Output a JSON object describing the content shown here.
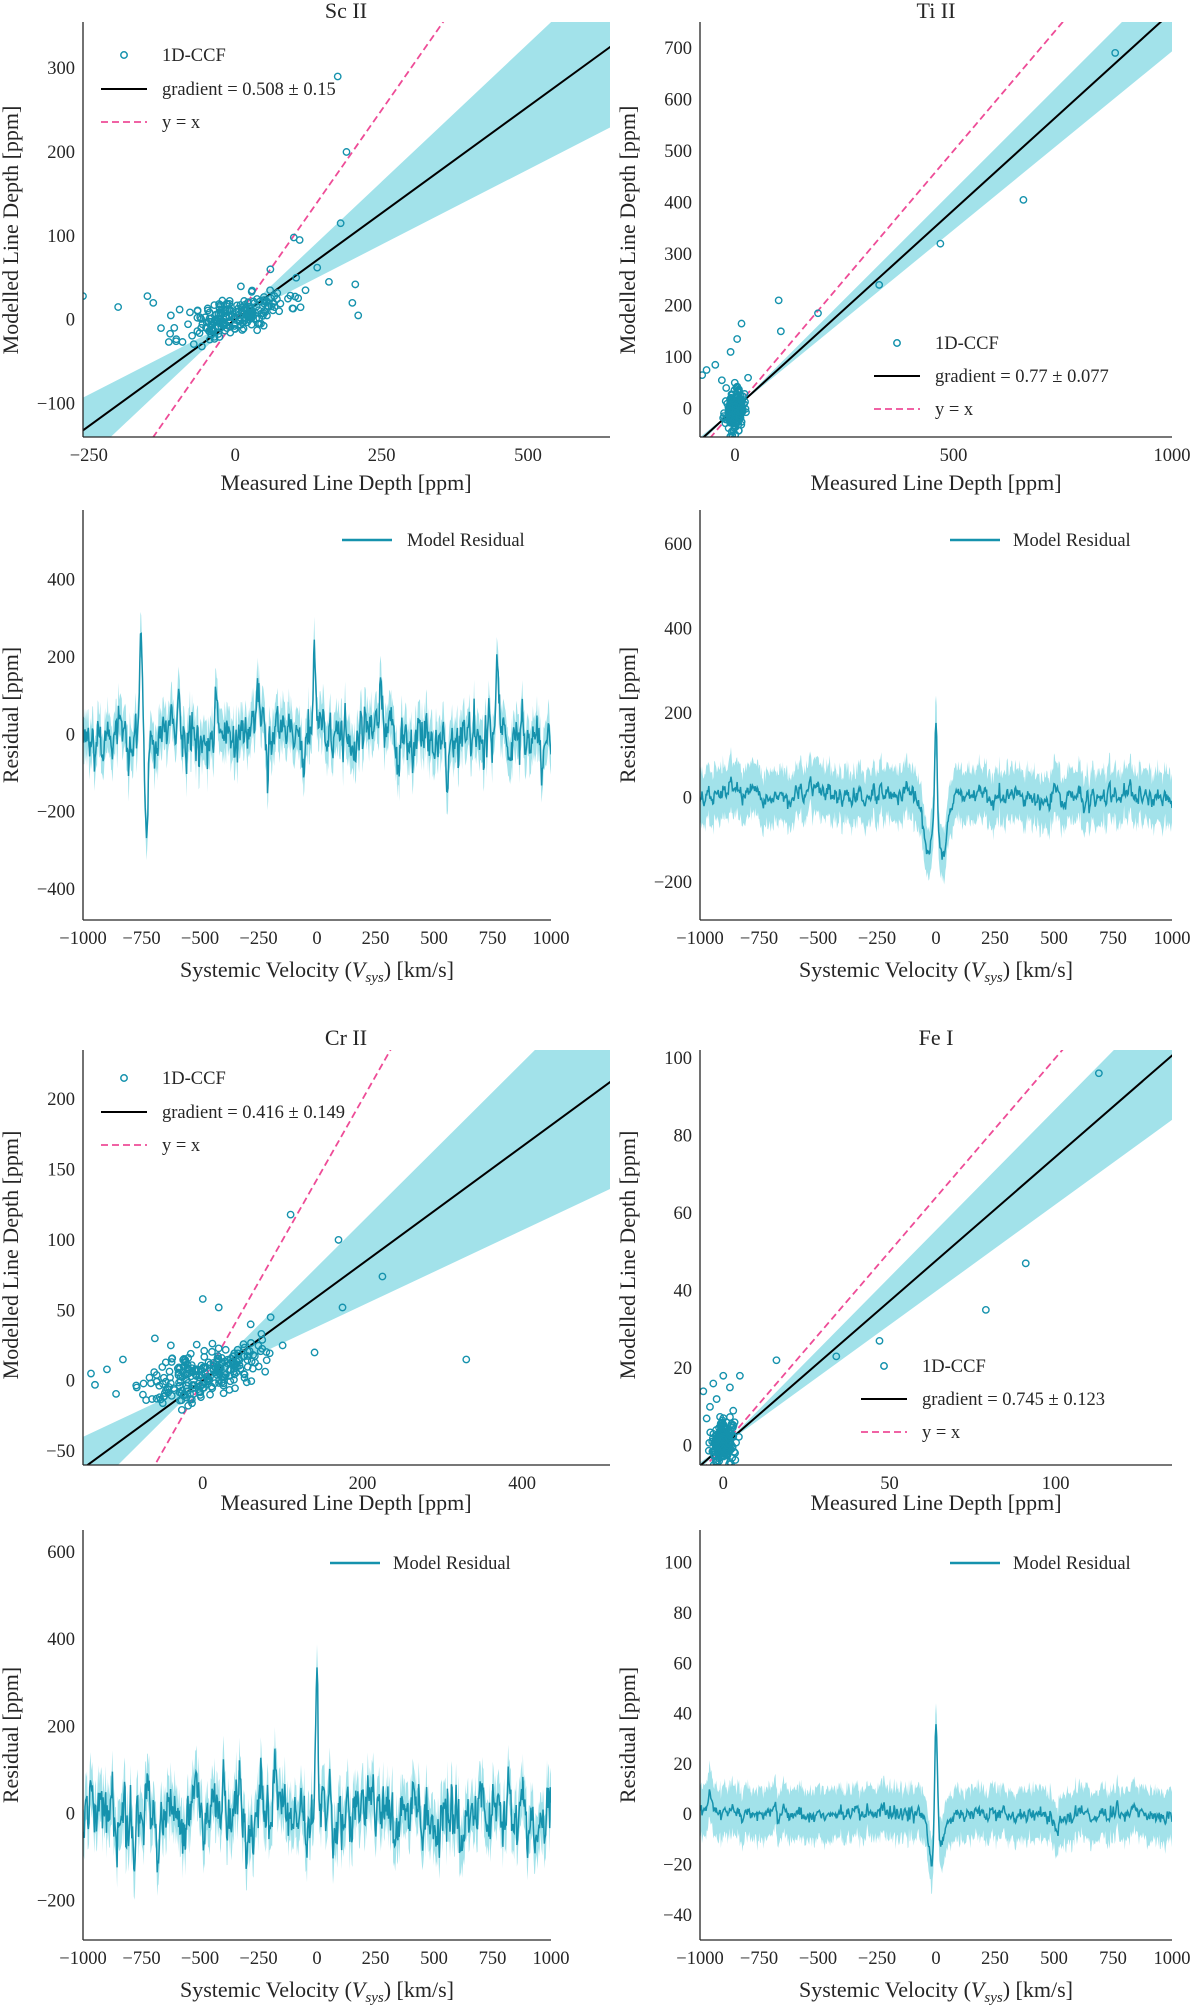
{
  "figure": {
    "colors": {
      "data": "#1592ad",
      "band": "#a2e2ea",
      "fit": "#000000",
      "identity": "#ee4c97",
      "residual": "#1592ad",
      "residual_band": "#a2e2ea"
    }
  },
  "chart_data": [
    {
      "id": "sc-corr",
      "type": "scatter",
      "title": "Sc II",
      "xlabel": "Measured Line Depth [ppm]",
      "ylabel": "Modelled Line Depth [ppm]",
      "xlim": [
        -260,
        640
      ],
      "ylim": [
        -140,
        355
      ],
      "xticks": [
        -250,
        0,
        250,
        500
      ],
      "yticks": [
        -100,
        0,
        100,
        200,
        300
      ],
      "legend_position": "top-left",
      "legend": {
        "scatter": "1D-CCF",
        "fit": "gradient = 0.508 ± 0.15",
        "identity": "y = x"
      },
      "gradient": 0.508,
      "gradient_err": 0.15,
      "outliers": [
        [
          -260,
          28
        ],
        [
          -200,
          15
        ],
        [
          -150,
          28
        ],
        [
          -140,
          20
        ],
        [
          -110,
          5
        ],
        [
          -95,
          12
        ],
        [
          100,
          98
        ],
        [
          110,
          95
        ],
        [
          140,
          62
        ],
        [
          160,
          45
        ],
        [
          175,
          290
        ],
        [
          190,
          200
        ],
        [
          180,
          115
        ],
        [
          200,
          20
        ],
        [
          205,
          42
        ],
        [
          210,
          5
        ],
        [
          120,
          35
        ],
        [
          90,
          25
        ],
        [
          75,
          10
        ],
        [
          60,
          60
        ]
      ],
      "cluster": {
        "cx": 0,
        "cy": 5,
        "sx": 45,
        "sy": 12,
        "n": 200
      }
    },
    {
      "id": "ti-corr",
      "type": "scatter",
      "title": "Ti II",
      "xlabel": "Measured Line Depth [ppm]",
      "ylabel": "Modelled Line Depth [ppm]",
      "xlim": [
        -80,
        1000
      ],
      "ylim": [
        -55,
        750
      ],
      "xticks": [
        0,
        500,
        1000
      ],
      "yticks": [
        0,
        100,
        200,
        300,
        400,
        500,
        600,
        700
      ],
      "legend_position": "center-right",
      "legend": {
        "scatter": "1D-CCF",
        "fit": "gradient = 0.77 ± 0.077",
        "identity": "y = x"
      },
      "gradient": 0.77,
      "gradient_err": 0.077,
      "outliers": [
        [
          -75,
          65
        ],
        [
          -65,
          75
        ],
        [
          -45,
          85
        ],
        [
          -30,
          55
        ],
        [
          -10,
          110
        ],
        [
          5,
          135
        ],
        [
          15,
          165
        ],
        [
          100,
          210
        ],
        [
          105,
          150
        ],
        [
          190,
          185
        ],
        [
          330,
          240
        ],
        [
          470,
          320
        ],
        [
          660,
          405
        ],
        [
          870,
          690
        ],
        [
          30,
          60
        ],
        [
          -20,
          40
        ]
      ],
      "cluster": {
        "cx": 0,
        "cy": -5,
        "sx": 10,
        "sy": 18,
        "n": 200
      }
    },
    {
      "id": "sc-res",
      "type": "line",
      "xlabel": "Systemic Velocity ($V_{sys}$) [km/s]",
      "ylabel": "Residual [ppm]",
      "xlim": [
        -1000,
        1000
      ],
      "ylim": [
        -480,
        580
      ],
      "xticks": [
        -1000,
        -750,
        -500,
        -250,
        0,
        250,
        500,
        750,
        1000
      ],
      "yticks": [
        -400,
        -200,
        0,
        200,
        400
      ],
      "legend_position": "top-right",
      "legend": {
        "line": "Model Residual"
      },
      "noise_amplitude": 32,
      "band_halfwidth": 55,
      "spikes": [
        [
          -750,
          200,
          8
        ],
        [
          -730,
          -290,
          8
        ],
        [
          -590,
          110,
          6
        ],
        [
          -430,
          100,
          6
        ],
        [
          -250,
          140,
          6
        ],
        [
          -210,
          -100,
          6
        ],
        [
          -60,
          -120,
          6
        ],
        [
          -10,
          170,
          6
        ],
        [
          250,
          60,
          6
        ],
        [
          270,
          110,
          6
        ],
        [
          350,
          -120,
          6
        ],
        [
          560,
          -100,
          6
        ],
        [
          770,
          160,
          6
        ],
        [
          820,
          -80,
          6
        ],
        [
          960,
          -70,
          6
        ]
      ]
    },
    {
      "id": "ti-res",
      "type": "line",
      "xlabel": "Systemic Velocity ($V_{sys}$) [km/s]",
      "ylabel": "Residual [ppm]",
      "xlim": [
        -1000,
        1000
      ],
      "ylim": [
        -290,
        680
      ],
      "xticks": [
        -1000,
        -750,
        -500,
        -250,
        0,
        250,
        500,
        750,
        1000
      ],
      "yticks": [
        -200,
        0,
        200,
        400,
        600
      ],
      "legend_position": "top-right",
      "legend": {
        "line": "Model Residual"
      },
      "noise_amplitude": 10,
      "band_halfwidth": 62,
      "spikes": [
        [
          0,
          250,
          5
        ],
        [
          -35,
          -140,
          18
        ],
        [
          30,
          -130,
          18
        ],
        [
          -860,
          30,
          25
        ],
        [
          -500,
          25,
          30
        ]
      ]
    },
    {
      "id": "cr-corr",
      "type": "scatter",
      "title": "Cr II",
      "xlabel": "Measured Line Depth [ppm]",
      "ylabel": "Modelled Line Depth [ppm]",
      "xlim": [
        -150,
        510
      ],
      "ylim": [
        -60,
        235
      ],
      "xticks": [
        0,
        200,
        400
      ],
      "yticks": [
        -50,
        0,
        50,
        100,
        150,
        200
      ],
      "legend_position": "top-left",
      "legend": {
        "scatter": "1D-CCF",
        "fit": "gradient = 0.416 ± 0.149",
        "identity": "y = x"
      },
      "gradient": 0.416,
      "gradient_err": 0.149,
      "outliers": [
        [
          -140,
          5
        ],
        [
          -135,
          -3
        ],
        [
          -120,
          8
        ],
        [
          -100,
          15
        ],
        [
          110,
          118
        ],
        [
          170,
          100
        ],
        [
          175,
          52
        ],
        [
          225,
          74
        ],
        [
          330,
          15
        ],
        [
          140,
          20
        ],
        [
          100,
          25
        ],
        [
          85,
          45
        ],
        [
          60,
          40
        ],
        [
          70,
          10
        ],
        [
          -60,
          30
        ],
        [
          -40,
          25
        ],
        [
          0,
          58
        ],
        [
          20,
          52
        ]
      ],
      "cluster": {
        "cx": 0,
        "cy": 5,
        "sx": 35,
        "sy": 9,
        "n": 240
      }
    },
    {
      "id": "fe-corr",
      "type": "scatter",
      "title": "Fe I",
      "xlabel": "Measured Line Depth [ppm]",
      "ylabel": "Modelled Line Depth [ppm]",
      "xlim": [
        -7,
        135
      ],
      "ylim": [
        -5,
        102
      ],
      "xticks": [
        0,
        50,
        100
      ],
      "yticks": [
        0,
        20,
        40,
        60,
        80,
        100
      ],
      "legend_position": "center-right",
      "legend": {
        "scatter": "1D-CCF",
        "fit": "gradient = 0.745 ± 0.123",
        "identity": "y = x"
      },
      "gradient": 0.745,
      "gradient_err": 0.123,
      "outliers": [
        [
          -6,
          14
        ],
        [
          -4,
          10
        ],
        [
          -3,
          16
        ],
        [
          -2,
          12
        ],
        [
          0,
          18
        ],
        [
          2,
          15
        ],
        [
          5,
          18
        ],
        [
          16,
          22
        ],
        [
          34,
          23
        ],
        [
          47,
          27
        ],
        [
          79,
          35
        ],
        [
          91,
          47
        ],
        [
          113,
          96
        ],
        [
          3,
          9
        ],
        [
          -5,
          7
        ]
      ],
      "cluster": {
        "cx": 0,
        "cy": 1,
        "sx": 1.8,
        "sy": 2.5,
        "n": 200
      }
    },
    {
      "id": "cr-res",
      "type": "line",
      "xlabel": "Systemic Velocity ($V_{sys}$) [km/s]",
      "ylabel": "Residual [ppm]",
      "xlim": [
        -1000,
        1000
      ],
      "ylim": [
        -290,
        650
      ],
      "xticks": [
        -1000,
        -750,
        -500,
        -250,
        0,
        250,
        500,
        750,
        1000
      ],
      "yticks": [
        -200,
        0,
        200,
        400,
        600
      ],
      "legend_position": "top-right",
      "legend": {
        "line": "Model Residual"
      },
      "noise_amplitude": 35,
      "band_halfwidth": 55,
      "spikes": [
        [
          -720,
          105,
          6
        ],
        [
          -680,
          -110,
          6
        ],
        [
          -500,
          80,
          6
        ],
        [
          -440,
          -60,
          6
        ],
        [
          -400,
          120,
          6
        ],
        [
          -330,
          160,
          6
        ],
        [
          -300,
          -100,
          6
        ],
        [
          -240,
          80,
          6
        ],
        [
          -180,
          120,
          6
        ],
        [
          0,
          320,
          5
        ],
        [
          80,
          -95,
          6
        ],
        [
          220,
          60,
          6
        ],
        [
          330,
          -80,
          6
        ],
        [
          620,
          -125,
          6
        ],
        [
          820,
          80,
          6
        ],
        [
          900,
          -60,
          6
        ]
      ]
    },
    {
      "id": "fe-res",
      "type": "line",
      "xlabel": "Systemic Velocity ($V_{sys}$) [km/s]",
      "ylabel": "Residual [ppm]",
      "xlim": [
        -1000,
        1000
      ],
      "ylim": [
        -50,
        113
      ],
      "xticks": [
        -1000,
        -750,
        -500,
        -250,
        0,
        250,
        500,
        750,
        1000
      ],
      "yticks": [
        -40,
        -20,
        0,
        20,
        40,
        60,
        80,
        100
      ],
      "legend_position": "top-right",
      "legend": {
        "line": "Model Residual"
      },
      "noise_amplitude": 1.5,
      "band_halfwidth": 10,
      "spikes": [
        [
          0,
          44,
          6
        ],
        [
          -20,
          -18,
          15
        ],
        [
          25,
          -10,
          15
        ],
        [
          -960,
          3,
          20
        ],
        [
          520,
          -4,
          20
        ]
      ]
    }
  ]
}
